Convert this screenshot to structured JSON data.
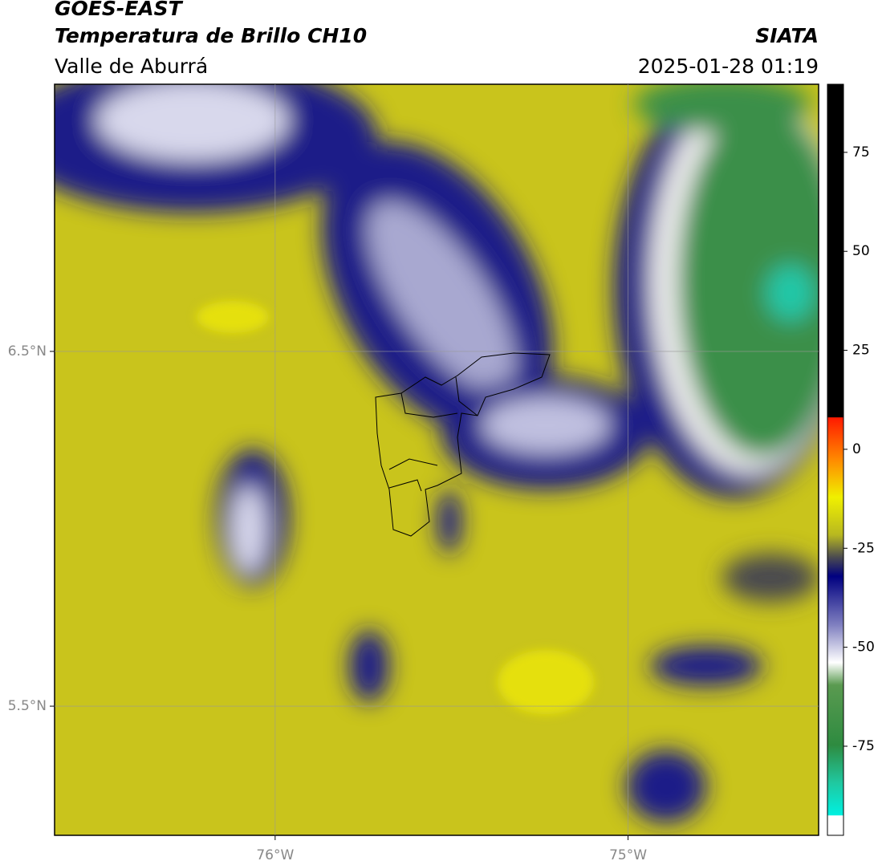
{
  "header": {
    "title": "GOES-EAST",
    "subtitle": "Temperatura de Brillo CH10",
    "region": "Valle de Aburrá",
    "source": "SIATA",
    "timestamp": "2025-01-28 01:19"
  },
  "map": {
    "xlim": [
      -76.625,
      -74.46
    ],
    "ylim": [
      5.136,
      7.253
    ],
    "xticks": [
      {
        "value": -76,
        "label": "76°W"
      },
      {
        "value": -75,
        "label": "75°W"
      }
    ],
    "yticks": [
      {
        "value": 6.5,
        "label": "6.5°N"
      },
      {
        "value": 5.5,
        "label": "5.5°N"
      }
    ],
    "grid": true
  },
  "colorbar": {
    "lim": [
      -97.5,
      92.2
    ],
    "ticks": [
      75,
      50,
      25,
      0,
      -25,
      -50,
      -75
    ]
  }
}
